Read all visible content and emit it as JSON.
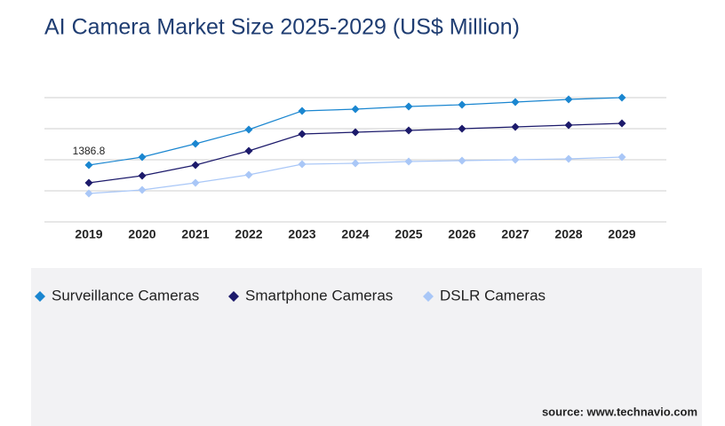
{
  "chart_data": {
    "type": "line",
    "title": "AI Camera Market Size 2025-2029 (US$ Million)",
    "categories": [
      "2019",
      "2020",
      "2021",
      "2022",
      "2023",
      "2024",
      "2025",
      "2026",
      "2027",
      "2028",
      "2029"
    ],
    "series": [
      {
        "name": "Surveillance Cameras",
        "color": "#1a86d0",
        "values": [
          1386.8,
          1582,
          1907,
          2254,
          2709,
          2752,
          2817,
          2860,
          2925,
          2990,
          3034
        ]
      },
      {
        "name": "Smartphone Cameras",
        "color": "#1c1a6b",
        "values": [
          953,
          1127,
          1387,
          1734,
          2145,
          2189,
          2232,
          2275,
          2319,
          2362,
          2405
        ]
      },
      {
        "name": "DSLR Cameras",
        "color": "#a9c7f7",
        "values": [
          693,
          780,
          953,
          1149,
          1409,
          1430,
          1474,
          1495,
          1517,
          1539,
          1582
        ]
      }
    ],
    "labeled_point": {
      "series": 0,
      "index": 0
    },
    "ylim": [
      0,
      3034
    ],
    "grid": true,
    "legend": "bottom-left",
    "source": "source: www.technavio.com"
  }
}
